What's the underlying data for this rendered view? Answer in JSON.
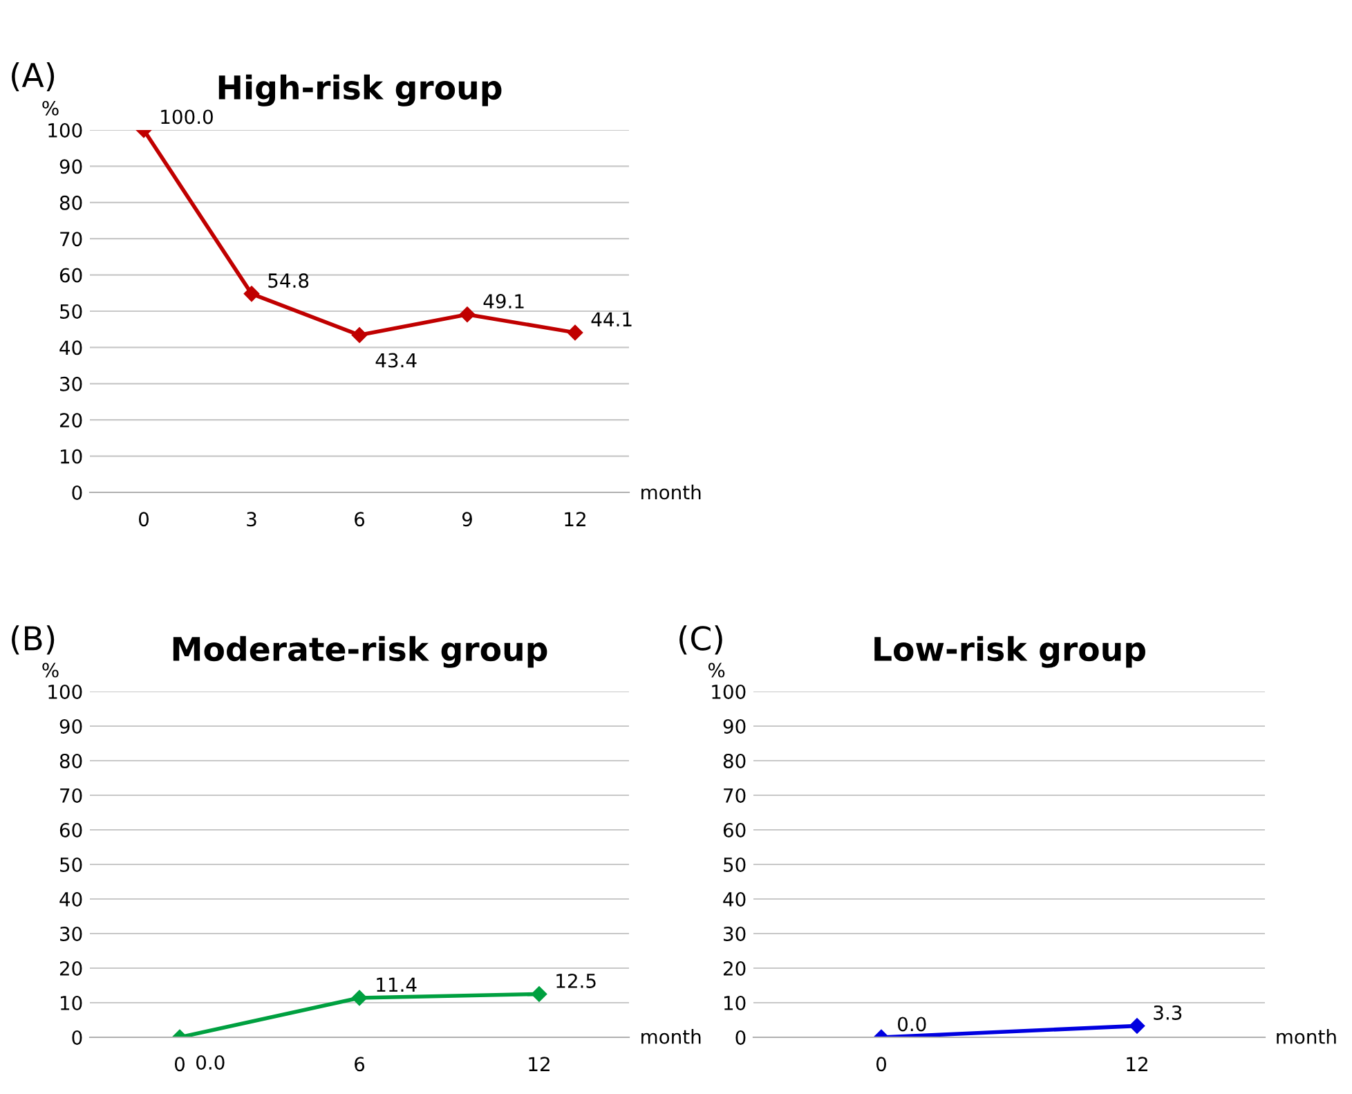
{
  "chart_data": [
    {
      "type": "line",
      "title": "High-risk group",
      "annotations": [
        "(A)"
      ],
      "ylabel": "%",
      "xlabel": "month",
      "categories": [
        "0",
        "3",
        "6",
        "9",
        "12"
      ],
      "series": [
        {
          "color": "#c00000",
          "values": [
            100,
            54.8,
            43.4,
            49.1,
            44.1
          ],
          "value_labels": [
            "100.0",
            "54.8",
            "43.4",
            "49.1",
            "44.1"
          ]
        }
      ],
      "ylim": [
        0,
        100
      ],
      "yticks": [
        0,
        10,
        20,
        30,
        40,
        50,
        60,
        70,
        80,
        90,
        100
      ],
      "grid": "y",
      "marker": "diamond",
      "line_style": "solid"
    },
    {
      "type": "line",
      "title": "Moderate-risk group",
      "annotations": [
        "(B)"
      ],
      "ylabel": "%",
      "xlabel": "month",
      "categories": [
        "0",
        "6",
        "12"
      ],
      "series": [
        {
          "color": "#00a040",
          "values": [
            0,
            11.4,
            12.5
          ],
          "value_labels": [
            "0.0",
            "11.4",
            "12.5"
          ]
        }
      ],
      "ylim": [
        0,
        100
      ],
      "yticks": [
        0,
        10,
        20,
        30,
        40,
        50,
        60,
        70,
        80,
        90,
        100
      ],
      "grid": "y",
      "marker": "diamond",
      "line_style": "solid"
    },
    {
      "type": "line",
      "title": "Low-risk group",
      "annotations": [
        "(C)"
      ],
      "ylabel": "%",
      "xlabel": "month",
      "categories": [
        "0",
        "12"
      ],
      "series": [
        {
          "color": "#0000e0",
          "values": [
            0,
            3.3
          ],
          "value_labels": [
            "0.0",
            "3.3"
          ]
        }
      ],
      "ylim": [
        0,
        100
      ],
      "yticks": [
        0,
        10,
        20,
        30,
        40,
        50,
        60,
        70,
        80,
        90,
        100
      ],
      "grid": "y",
      "marker": "diamond",
      "line_style": "solid"
    }
  ]
}
